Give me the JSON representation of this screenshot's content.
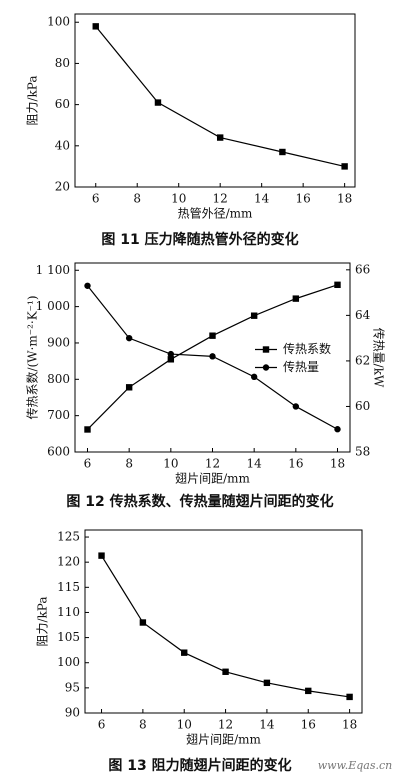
{
  "chart_data": [
    {
      "type": "line",
      "caption": "图 11   压力降随热管外径的变化",
      "x_label": "热管外径/mm",
      "y_label": "阻力/kPa",
      "x": [
        6,
        9,
        12,
        15,
        18
      ],
      "values": [
        98,
        61,
        44,
        37,
        30
      ],
      "color": "#000000",
      "marker": "square",
      "xlim": [
        5,
        18.5
      ],
      "xticks": [
        6,
        8,
        10,
        12,
        14,
        16,
        18
      ],
      "ylim": [
        20,
        104
      ],
      "yticks": [
        20,
        40,
        60,
        80,
        100
      ]
    },
    {
      "type": "line",
      "caption": "图 12   传热系数、传热量随翅片间距的变化",
      "x_label": "翅片间距/mm",
      "y_label": "传热系数/(W·m⁻²·K⁻¹)",
      "y2_label": "传热量/kW",
      "x": [
        6,
        8,
        10,
        12,
        14,
        16,
        18
      ],
      "series": [
        {
          "name": "传热系数",
          "color": "#000000",
          "marker": "square",
          "values": [
            662,
            778,
            855,
            920,
            975,
            1022,
            1060
          ]
        },
        {
          "name": "传热量",
          "color": "#000000",
          "marker": "circle",
          "axis": "y2",
          "values": [
            65.3,
            63.0,
            62.3,
            62.2,
            61.3,
            60.0,
            59.0
          ]
        }
      ],
      "legend": "right",
      "xlim": [
        5.4,
        18.6
      ],
      "xticks": [
        6,
        8,
        10,
        12,
        14,
        16,
        18
      ],
      "ylim": [
        600,
        1120
      ],
      "yticks": [
        600,
        700,
        800,
        900,
        {
          "value": 1000,
          "label": "1 000"
        },
        {
          "value": 1100,
          "label": "1 100"
        }
      ],
      "y2lim": [
        58,
        66.3
      ],
      "y2ticks": [
        58,
        60,
        62,
        64,
        66
      ]
    },
    {
      "type": "line",
      "caption": "图 13   阻力随翅片间距的变化",
      "x_label": "翅片间距/mm",
      "y_label": "阻力/kPa",
      "x": [
        6,
        8,
        10,
        12,
        14,
        16,
        18
      ],
      "values": [
        121.3,
        108,
        102,
        98.2,
        96,
        94.4,
        93.2
      ],
      "color": "#000000",
      "marker": "square",
      "xlim": [
        5.2,
        18.6
      ],
      "xticks": [
        6,
        8,
        10,
        12,
        14,
        16,
        18
      ],
      "ylim": [
        90,
        126.4
      ],
      "yticks": [
        90,
        95,
        100,
        105,
        110,
        115,
        120,
        125
      ]
    }
  ],
  "watermark": "www.Eqas.cn"
}
